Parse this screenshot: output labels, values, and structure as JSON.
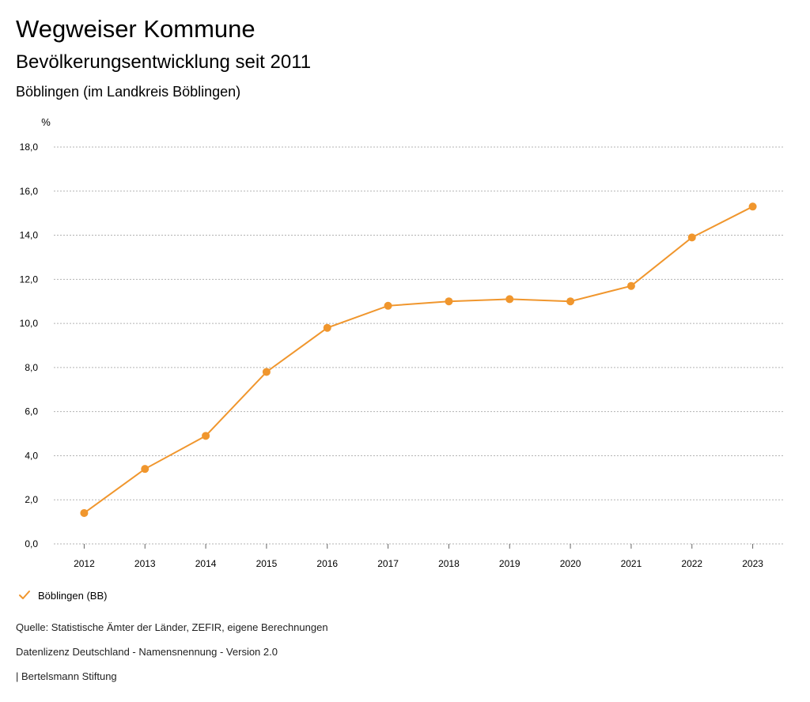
{
  "header": {
    "title": "Wegweiser Kommune",
    "subtitle": "Bevölkerungsentwicklung seit 2011",
    "region": "Böblingen (im Landkreis Böblingen)"
  },
  "legend": {
    "label": "Böblingen (BB)"
  },
  "footer": {
    "source": "Quelle: Statistische Ämter der Länder, ZEFIR, eigene Berechnungen",
    "license": "Datenlizenz Deutschland - Namensnennung - Version 2.0",
    "publisher": "| Bertelsmann Stiftung"
  },
  "colors": {
    "series": "#f0962d",
    "grid": "#b3b3b3",
    "axis": "#666666"
  },
  "chart_data": {
    "type": "line",
    "ylabel": "%",
    "ylim": [
      0,
      18
    ],
    "yticks": [
      0,
      2,
      4,
      6,
      8,
      10,
      12,
      14,
      16,
      18
    ],
    "ytick_labels": [
      "0,0",
      "2,0",
      "4,0",
      "6,0",
      "8,0",
      "10,0",
      "12,0",
      "14,0",
      "16,0",
      "18,0"
    ],
    "categories": [
      "2012",
      "2013",
      "2014",
      "2015",
      "2016",
      "2017",
      "2018",
      "2019",
      "2020",
      "2021",
      "2022",
      "2023"
    ],
    "grid": true,
    "legend_position": "bottom-left",
    "series": [
      {
        "name": "Böblingen (BB)",
        "values": [
          1.4,
          3.4,
          4.9,
          7.8,
          9.8,
          10.8,
          11.0,
          11.1,
          11.0,
          11.7,
          13.9,
          15.3
        ]
      }
    ]
  }
}
